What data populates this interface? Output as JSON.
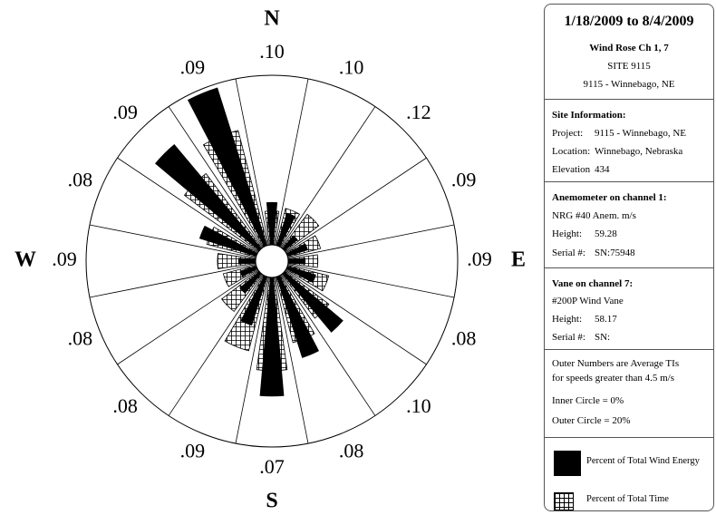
{
  "chart_data": {
    "type": "windrose",
    "direction_labels": [
      "N",
      "E",
      "S",
      "W"
    ],
    "sectors": 16,
    "rlim": [
      0,
      20
    ],
    "series": [
      {
        "name": "Percent of Total Time",
        "color": "#000000",
        "pattern": "grid",
        "values": [
          4,
          4.5,
          5,
          4,
          3.5,
          5,
          6.5,
          8,
          11,
          9,
          5.5,
          4,
          4.5,
          6,
          11,
          14
        ]
      },
      {
        "name": "Percent of Total Wind Energy",
        "color": "#000000",
        "pattern": "solid",
        "values": [
          5,
          4,
          2,
          2.5,
          2,
          3.5,
          9,
          10,
          14,
          6,
          3,
          2,
          2,
          7,
          16,
          19.5
        ]
      }
    ],
    "turbulence": {
      "values": [
        0.1,
        0.1,
        0.12,
        0.09,
        0.09,
        0.08,
        0.1,
        0.08,
        0.07,
        0.09,
        0.08,
        0.08,
        0.09,
        0.08,
        0.09,
        0.09
      ],
      "value_labels": [
        ".10",
        ".10",
        ".12",
        ".09",
        ".09",
        ".08",
        ".10",
        ".08",
        ".07",
        ".09",
        ".08",
        ".08",
        ".09",
        ".08",
        ".09",
        ".09"
      ]
    }
  },
  "panel": {
    "header": {
      "date_range": "1/18/2009 to 8/4/2009",
      "title": "Wind Rose Ch 1, 7",
      "site": "SITE 9115",
      "location": "9115 - Winnebago, NE"
    },
    "site_info": {
      "heading": "Site Information:",
      "rows": [
        [
          "Project:",
          "9115 - Winnebago, NE"
        ],
        [
          "Location:",
          "Winnebago, Nebraska"
        ],
        [
          "Elevation",
          "434"
        ]
      ]
    },
    "anemometer": {
      "heading": "Anemometer on channel 1:",
      "model": "NRG #40 Anem. m/s",
      "rows": [
        [
          "Height:",
          "59.28"
        ],
        [
          "Serial #:",
          "SN:75948"
        ]
      ]
    },
    "vane": {
      "heading": "Vane on channel 7:",
      "model": "#200P Wind Vane",
      "rows": [
        [
          "Height:",
          "58.17"
        ],
        [
          "Serial #:",
          "SN:"
        ]
      ]
    },
    "notes": [
      "Outer Numbers are Average TIs",
      "for speeds greater than 4.5 m/s",
      "Inner Circle = 0%",
      "Outer Circle = 20%"
    ]
  }
}
